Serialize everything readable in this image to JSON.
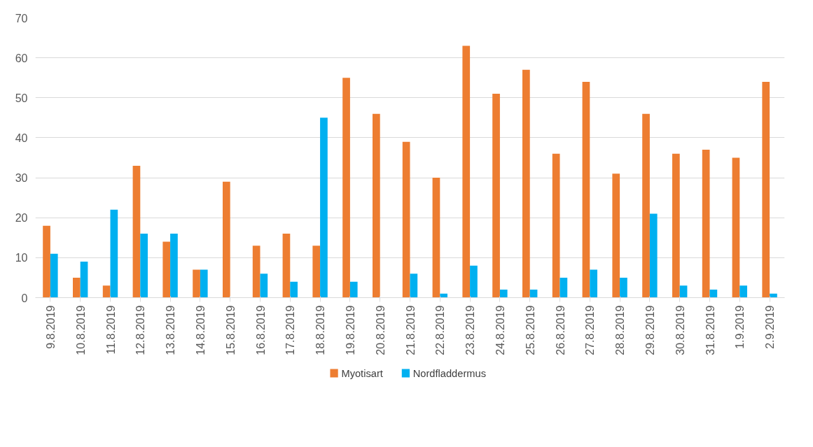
{
  "chart_data": {
    "type": "bar",
    "categories": [
      "9.8.2019",
      "10.8.2019",
      "11.8.2019",
      "12.8.2019",
      "13.8.2019",
      "14.8.2019",
      "15.8.2019",
      "16.8.2019",
      "17.8.2019",
      "18.8.2019",
      "19.8.2019",
      "20.8.2019",
      "21.8.2019",
      "22.8.2019",
      "23.8.2019",
      "24.8.2019",
      "25.8.2019",
      "26.8.2019",
      "27.8.2019",
      "28.8.2019",
      "29.8.2019",
      "30.8.2019",
      "31.8.2019",
      "1.9.2019",
      "2.9.2019"
    ],
    "series": [
      {
        "name": "Myotisart",
        "color": "#ed7d31",
        "values": [
          18,
          5,
          3,
          33,
          14,
          7,
          29,
          13,
          16,
          13,
          55,
          46,
          39,
          30,
          63,
          51,
          57,
          36,
          54,
          31,
          46,
          36,
          37,
          35,
          54
        ]
      },
      {
        "name": "Nordfladdermus",
        "color": "#00b0f0",
        "values": [
          11,
          9,
          22,
          16,
          16,
          7,
          0,
          6,
          4,
          45,
          4,
          0,
          6,
          1,
          8,
          2,
          2,
          5,
          7,
          5,
          21,
          3,
          2,
          3,
          1
        ]
      }
    ],
    "ylim": [
      0,
      70
    ],
    "yticks": [
      0,
      10,
      20,
      30,
      40,
      50,
      60,
      70
    ],
    "grid": "y",
    "legend": "bottom"
  }
}
